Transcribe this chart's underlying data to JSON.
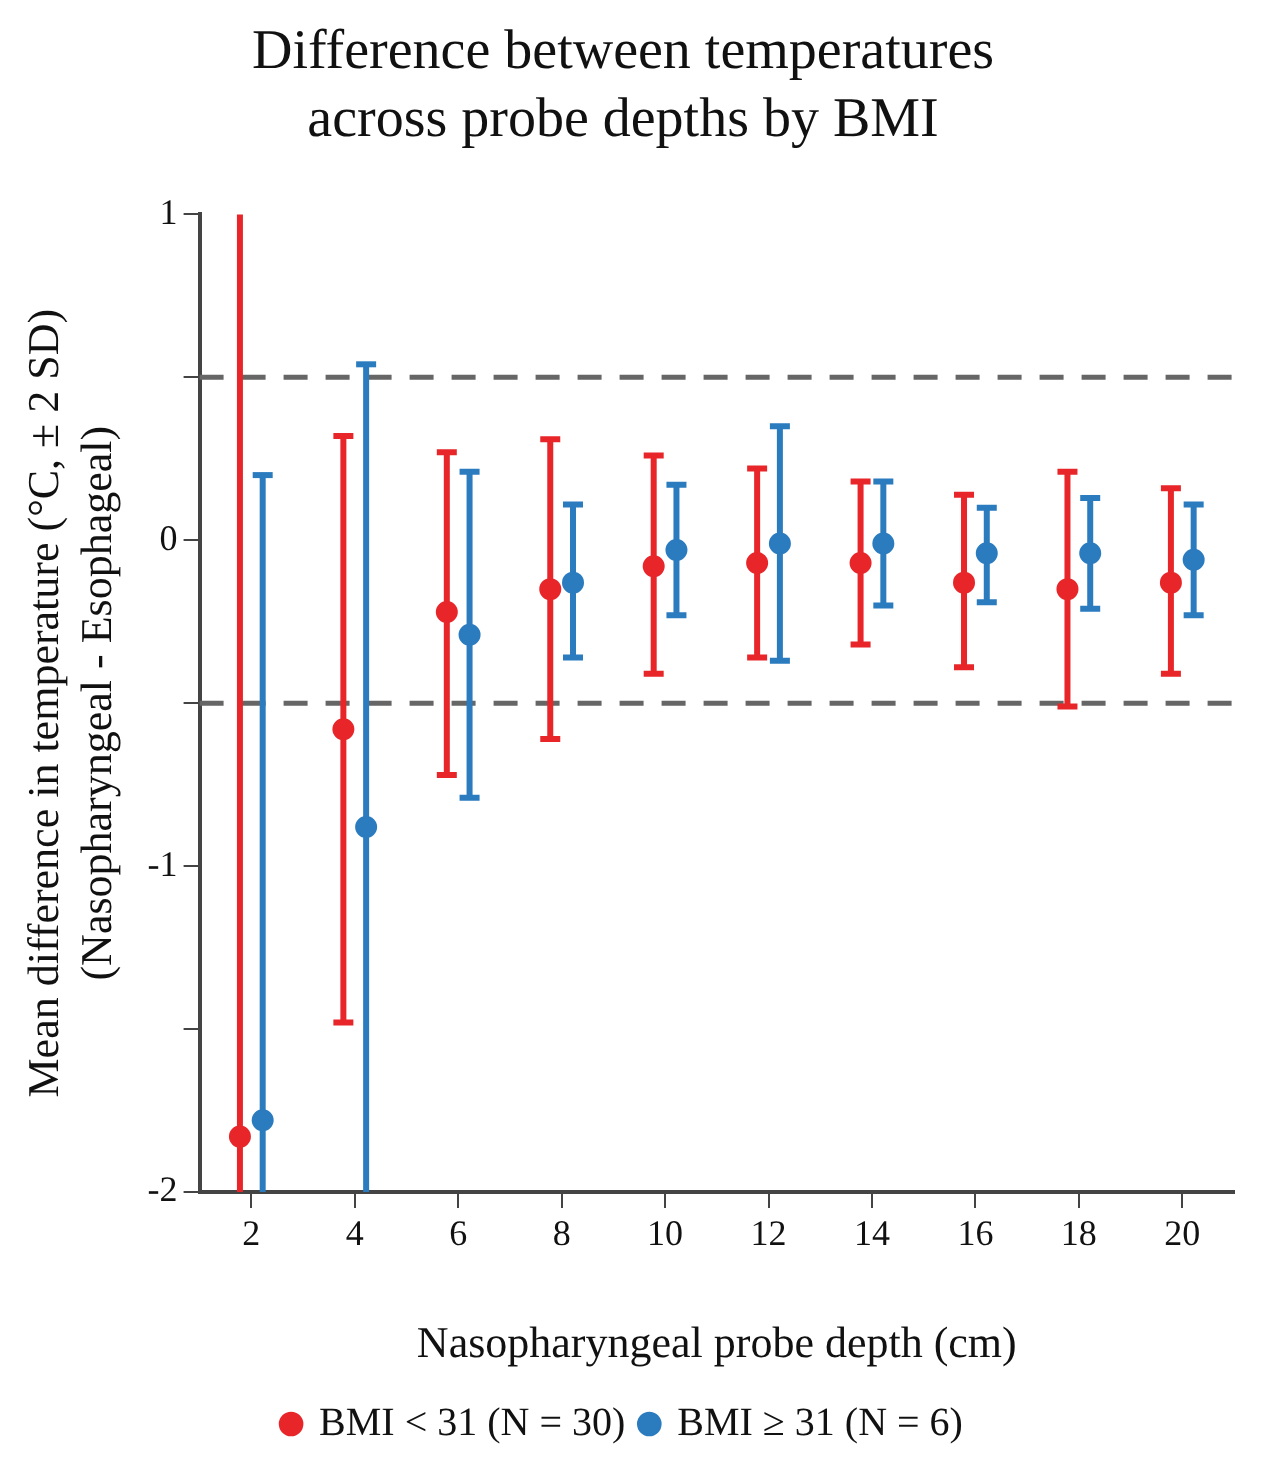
{
  "chart_data": {
    "type": "scatter",
    "title": "Difference between temperatures across probe depths by BMI",
    "xlabel": "Nasopharyngeal probe depth (cm)",
    "ylabel": "Mean difference in temperature (°C, ± 2 SD) (Nasopharyngeal - Esophageal)",
    "categories": [
      "2",
      "4",
      "6",
      "8",
      "10",
      "12",
      "14",
      "16",
      "18",
      "20"
    ],
    "series": [
      {
        "name": "BMI < 31 (N = 30)",
        "color": "#e8262a",
        "values": [
          -1.83,
          -0.58,
          -0.22,
          -0.15,
          -0.08,
          -0.07,
          -0.07,
          -0.13,
          -0.15,
          -0.13
        ],
        "errors": [
          [
            -2,
            1.0
          ],
          [
            -1.48,
            0.32
          ],
          [
            -0.72,
            0.27
          ],
          [
            -0.61,
            0.31
          ],
          [
            -0.41,
            0.26
          ],
          [
            -0.36,
            0.22
          ],
          [
            -0.32,
            0.18
          ],
          [
            -0.39,
            0.14
          ],
          [
            -0.51,
            0.21
          ],
          [
            -0.41,
            0.16
          ]
        ]
      },
      {
        "name": "BMI ≥ 31 (N = 6)",
        "color": "#2b7bbf",
        "values": [
          -1.78,
          -0.88,
          -0.29,
          -0.13,
          -0.03,
          -0.01,
          -0.01,
          -0.04,
          -0.04,
          -0.06
        ],
        "errors": [
          [
            -2,
            0.2
          ],
          [
            -2,
            0.54
          ],
          [
            -0.79,
            0.21
          ],
          [
            -0.36,
            0.11
          ],
          [
            -0.23,
            0.17
          ],
          [
            -0.37,
            0.35
          ],
          [
            -0.2,
            0.18
          ],
          [
            -0.19,
            0.1
          ],
          [
            -0.21,
            0.13
          ],
          [
            -0.23,
            0.11
          ]
        ]
      }
    ],
    "ylim": [
      -2,
      1
    ],
    "yticks": [
      -2,
      {
        "value": -1.5,
        "label": null
      },
      -1,
      {
        "value": -0.5,
        "label": null
      },
      0,
      {
        "value": 0.5,
        "label": null
      },
      1
    ],
    "ref_lines": [
      {
        "axis": "y",
        "value": 0.5,
        "color": "#666666",
        "line_style": "dashed"
      },
      {
        "axis": "y",
        "value": -0.5,
        "color": "#666666",
        "line_style": "dashed"
      }
    ],
    "grid": false,
    "legend": "bottom",
    "marker": "circle"
  }
}
